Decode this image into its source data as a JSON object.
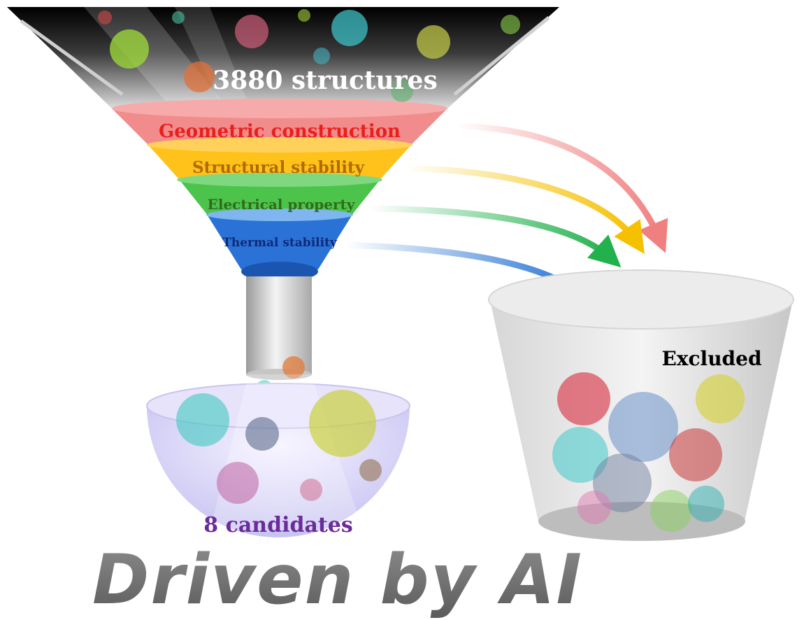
{
  "funnel": {
    "top_label": "3880 structures",
    "stages": [
      {
        "label": "Geometric construction",
        "color": "#e8201c",
        "band": "#f28b8b"
      },
      {
        "label": "Structural stability",
        "color": "#b06a00",
        "band": "#ffc21a"
      },
      {
        "label": "Electrical property",
        "color": "#2f6b1a",
        "band": "#4cc44c"
      },
      {
        "label": "Thermal stability",
        "color": "#0f2a78",
        "band": "#2a72d6"
      }
    ]
  },
  "bowl": {
    "label": "8 candidates",
    "label_color": "#6a2c9a"
  },
  "bin": {
    "label": "Excluded"
  },
  "footer": {
    "slogan": "Driven by AI"
  },
  "colors": {
    "arrow_red": "#f08080",
    "arrow_yellow": "#f5c000",
    "arrow_green": "#22b14c",
    "arrow_blue": "#1f6fd0"
  }
}
